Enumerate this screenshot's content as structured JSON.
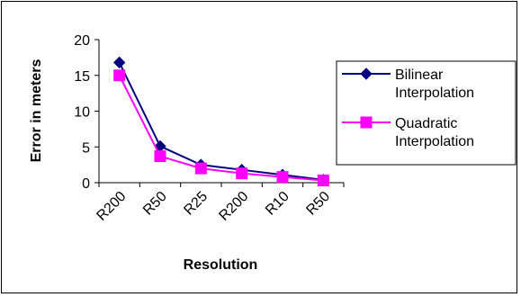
{
  "chart_data": {
    "type": "line",
    "categories": [
      "R200",
      "R50",
      "R25",
      "R200",
      "R10",
      "R50"
    ],
    "series": [
      {
        "name": "Bilinear Interpolation",
        "values": [
          16.8,
          5.1,
          2.5,
          1.8,
          1.1,
          0.4
        ],
        "color": "#000080",
        "marker": "diamond"
      },
      {
        "name": "Quadratic Interpolation",
        "values": [
          15.0,
          3.7,
          2.0,
          1.3,
          0.8,
          0.3
        ],
        "color": "#ff00ff",
        "marker": "square"
      }
    ],
    "xlabel": "Resolution",
    "ylabel": "Error in meters",
    "yticks": [
      0,
      5,
      10,
      15,
      20
    ],
    "ylim": [
      0,
      20
    ],
    "grid": false,
    "legend_position": "right"
  }
}
